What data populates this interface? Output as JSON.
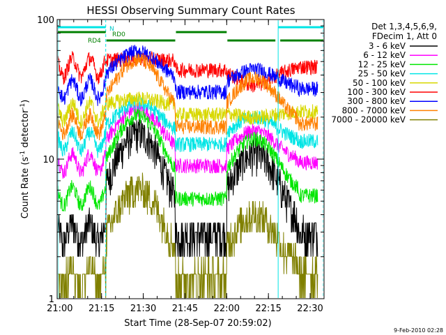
{
  "chart_data": {
    "type": "line",
    "title": "HESSI Observing Summary Count Rates",
    "ylabel": "Count Rate (s",
    "ylabel_sup": "-1",
    "ylabel_rest": " detector",
    "ylabel_end": ")",
    "xlabel": "Start Time (28-Sep-07 20:59:02)",
    "x_ticks": [
      "21:00",
      "21:15",
      "21:30",
      "21:45",
      "22:00",
      "22:15",
      "22:30"
    ],
    "y_ticks": [
      "1",
      "10",
      "100"
    ],
    "y_scale": "log",
    "ylim": [
      1,
      100
    ],
    "xlim": [
      "20:59:02",
      "22:35:00"
    ],
    "legend_header": [
      "Det 1,3,4,5,6,9,",
      "FDecim 1, Att 0"
    ],
    "legend_position": "right",
    "flags": {
      "N": "N",
      "RD0": "RD0",
      "RD4": "RD4",
      "saa_color": "#00e5e5",
      "attenuator_color": "#008000"
    },
    "footer_date": "9-Feb-2010 02:28",
    "series": [
      {
        "name": "3 - 6 keV",
        "color": "#000000",
        "base": 3.0,
        "peak": 15,
        "peak2": 11
      },
      {
        "name": "6 - 12 keV",
        "color": "#ff00ff",
        "base": 9.5,
        "peak": 22,
        "peak2": 16
      },
      {
        "name": "12 - 25 keV",
        "color": "#00e600",
        "base": 5.5,
        "peak": 20,
        "peak2": 14
      },
      {
        "name": "25 - 50 keV",
        "color": "#00e5e5",
        "base": 13.5,
        "peak": 24,
        "peak2": 20
      },
      {
        "name": "50 - 100 keV",
        "color": "#d8d800",
        "base": 22,
        "peak": 25,
        "peak2": 20
      },
      {
        "name": "100 - 300 keV",
        "color": "#ff0000",
        "base": 46,
        "peak": 48,
        "peak2": 34
      },
      {
        "name": "300 - 800 keV",
        "color": "#0000ff",
        "base": 32,
        "peak": 56,
        "peak2": 44
      },
      {
        "name": "800 - 7000 keV",
        "color": "#ff8000",
        "base": 18,
        "peak": 50,
        "peak2": 38
      },
      {
        "name": "7000 - 20000 keV",
        "color": "#808000",
        "base": 1.5,
        "peak": 6,
        "peak2": 4
      }
    ]
  }
}
